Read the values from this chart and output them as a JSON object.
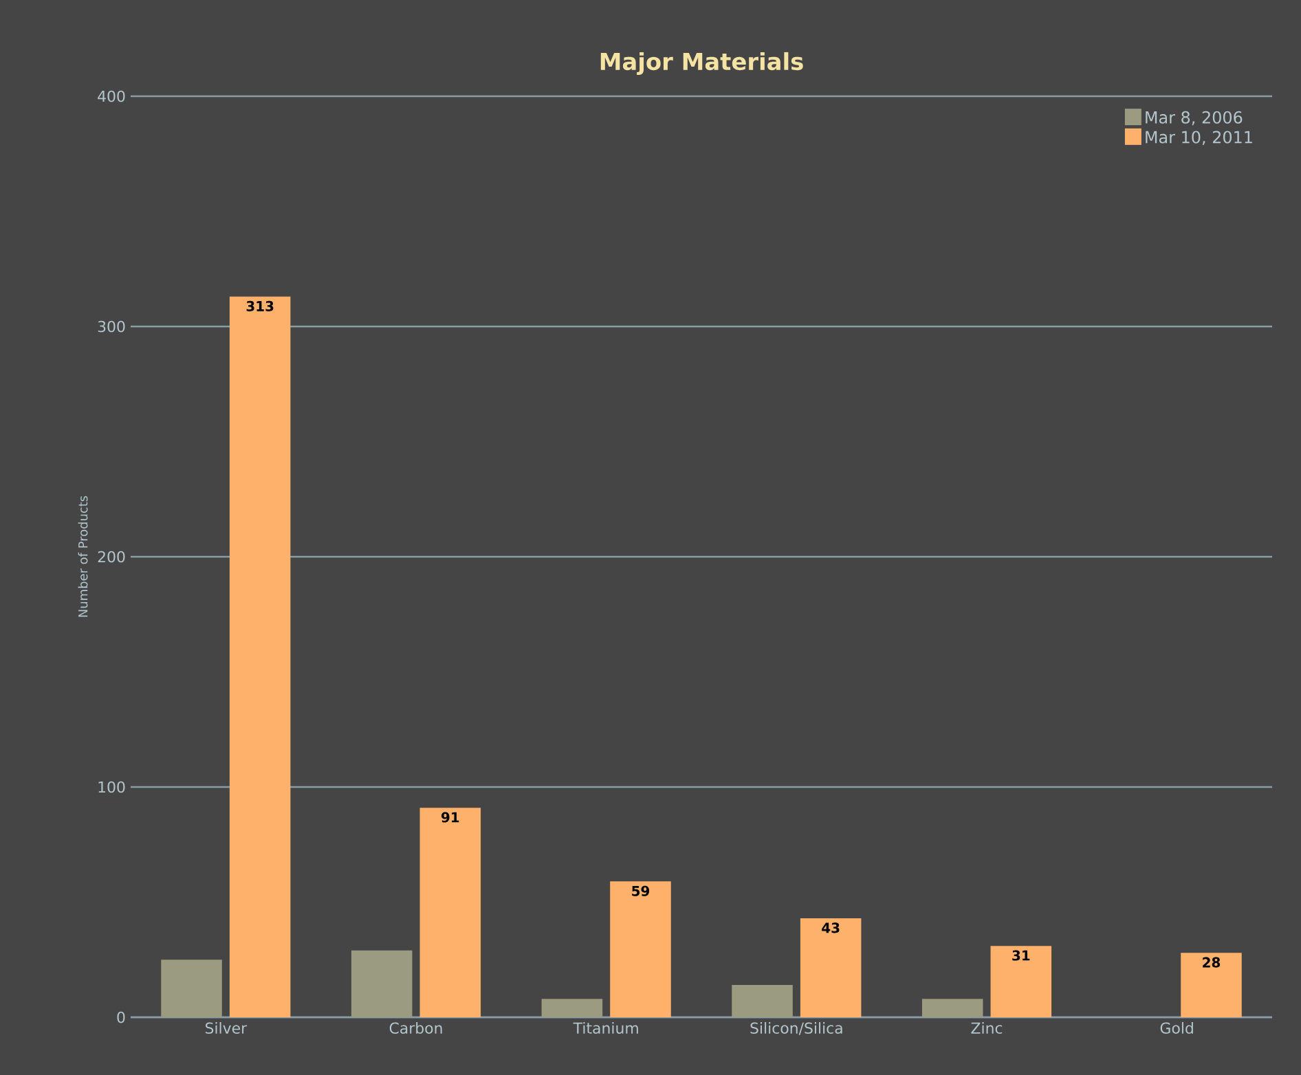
{
  "chart_data": {
    "type": "bar",
    "title": "Major Materials",
    "ylabel": "Number of Products",
    "categories": [
      "Silver",
      "Carbon",
      "Titanium",
      "Silicon/Silica",
      "Zinc",
      "Gold"
    ],
    "series": [
      {
        "name": "Mar 8, 2006",
        "color": "#9b9b82",
        "values": [
          25,
          29,
          8,
          14,
          8,
          0
        ]
      },
      {
        "name": "Mar 10, 2011",
        "color": "#fdb16b",
        "values": [
          313,
          91,
          59,
          43,
          31,
          28
        ],
        "value_labels": [
          "313",
          "91",
          "59",
          "43",
          "31",
          "28"
        ]
      }
    ],
    "ylim": [
      0,
      400
    ],
    "yticks": [
      0,
      100,
      200,
      300,
      400
    ],
    "grid": "y",
    "legend": "top right"
  }
}
